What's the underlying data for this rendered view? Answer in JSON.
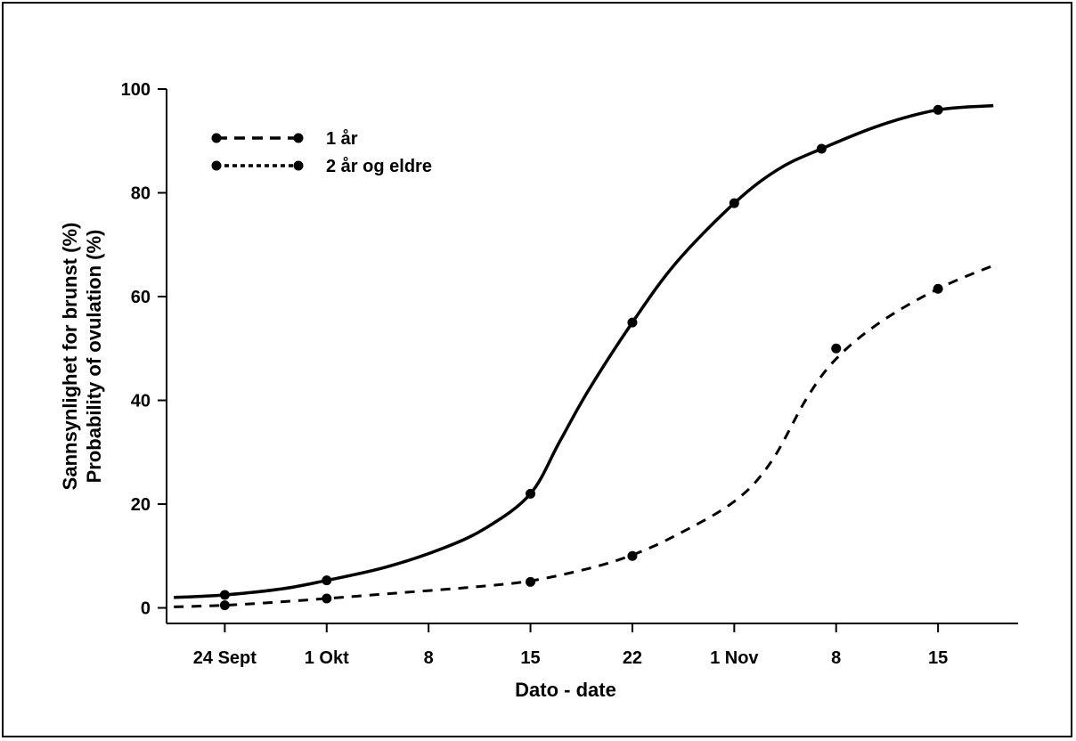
{
  "chart_data": {
    "type": "line",
    "title": "",
    "xlabel": "Dato - date",
    "ylabel_lines": [
      "Sannsynlighet for brunst (%)",
      "Probability of ovulation (%)"
    ],
    "x_unit": "days",
    "x_ticks": [
      {
        "label": "24 Sept",
        "x": 0
      },
      {
        "label": "1 Okt",
        "x": 7
      },
      {
        "label": "8",
        "x": 14
      },
      {
        "label": "15",
        "x": 21
      },
      {
        "label": "22",
        "x": 28
      },
      {
        "label": "1 Nov",
        "x": 35
      },
      {
        "label": "8",
        "x": 42
      },
      {
        "label": "15",
        "x": 49
      }
    ],
    "y_ticks": [
      0,
      20,
      40,
      60,
      80,
      100
    ],
    "xlim": [
      -4,
      54.5
    ],
    "ylim": [
      -3,
      100
    ],
    "grid": false,
    "legend_position": "top-left",
    "series": [
      {
        "name": "1 år",
        "style": "dashed",
        "points": [
          [
            0,
            0.5
          ],
          [
            7,
            1.8
          ],
          [
            21,
            5
          ],
          [
            28,
            10
          ],
          [
            42,
            50
          ],
          [
            49,
            61.5
          ]
        ],
        "curve": [
          [
            -3.5,
            0.2
          ],
          [
            0,
            0.5
          ],
          [
            3,
            1.0
          ],
          [
            7,
            1.8
          ],
          [
            12,
            2.9
          ],
          [
            17,
            4.0
          ],
          [
            21,
            5.2
          ],
          [
            25,
            7.6
          ],
          [
            28,
            10.2
          ],
          [
            31,
            14
          ],
          [
            35,
            20.5
          ],
          [
            37.5,
            28
          ],
          [
            40,
            40.5
          ],
          [
            42,
            48
          ],
          [
            45,
            55
          ],
          [
            49,
            61.5
          ],
          [
            52.8,
            66
          ]
        ]
      },
      {
        "name": "2 år og eldre",
        "style": "dotted",
        "points": [
          [
            0,
            2.5
          ],
          [
            7,
            5.3
          ],
          [
            21,
            22
          ],
          [
            28,
            55
          ],
          [
            35,
            78
          ],
          [
            41,
            88.5
          ],
          [
            49,
            96
          ]
        ],
        "curve": [
          [
            -3.5,
            2
          ],
          [
            0,
            2.5
          ],
          [
            4,
            3.7
          ],
          [
            7,
            5.3
          ],
          [
            11,
            7.8
          ],
          [
            15,
            11.5
          ],
          [
            18,
            15.5
          ],
          [
            21,
            22
          ],
          [
            23,
            32
          ],
          [
            25,
            42
          ],
          [
            28,
            55
          ],
          [
            31,
            66.5
          ],
          [
            35,
            78
          ],
          [
            38,
            84.5
          ],
          [
            41,
            88.5
          ],
          [
            45,
            93
          ],
          [
            49,
            96
          ],
          [
            52.8,
            96.8
          ]
        ]
      }
    ]
  }
}
